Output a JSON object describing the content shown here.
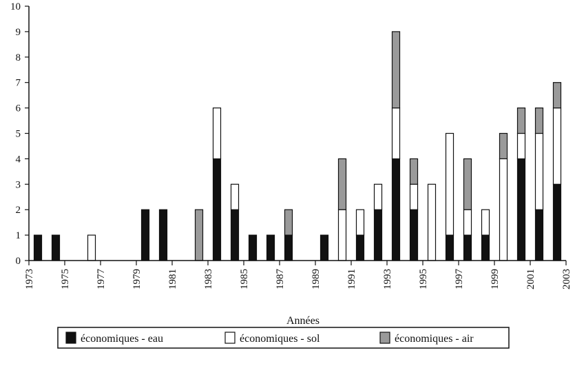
{
  "chart_data": {
    "type": "bar",
    "stacked": true,
    "title": "",
    "xlabel": "Années",
    "ylabel": "",
    "ylim": [
      0,
      10
    ],
    "yticks": [
      0,
      1,
      2,
      3,
      4,
      5,
      6,
      7,
      8,
      9,
      10
    ],
    "x_tick_labels": [
      "1973",
      "1975",
      "1977",
      "1979",
      "1981",
      "1983",
      "1985",
      "1987",
      "1989",
      "1991",
      "1993",
      "1995",
      "1997",
      "1999",
      "2001",
      "2003"
    ],
    "categories": [
      1973,
      1974,
      1975,
      1976,
      1977,
      1978,
      1979,
      1980,
      1981,
      1982,
      1983,
      1984,
      1985,
      1986,
      1987,
      1988,
      1989,
      1990,
      1991,
      1992,
      1993,
      1994,
      1995,
      1996,
      1997,
      1998,
      1999,
      2000,
      2001,
      2002
    ],
    "series": [
      {
        "name": "économiques - eau",
        "color": "#111111",
        "values": [
          1,
          1,
          0,
          0,
          0,
          0,
          2,
          2,
          0,
          0,
          4,
          2,
          1,
          1,
          1,
          0,
          1,
          0,
          1,
          2,
          4,
          2,
          0,
          1,
          1,
          1,
          0,
          4,
          2,
          3
        ]
      },
      {
        "name": "économiques - sol",
        "color": "#ffffff",
        "values": [
          0,
          0,
          0,
          1,
          0,
          0,
          0,
          0,
          0,
          0,
          2,
          1,
          0,
          0,
          0,
          0,
          0,
          2,
          1,
          1,
          2,
          1,
          3,
          4,
          1,
          1,
          4,
          1,
          3,
          3
        ]
      },
      {
        "name": "économiques - air",
        "color": "#9a9a9a",
        "values": [
          0,
          0,
          0,
          0,
          0,
          0,
          0,
          0,
          0,
          2,
          0,
          0,
          0,
          0,
          1,
          0,
          0,
          2,
          0,
          0,
          3,
          1,
          0,
          0,
          2,
          0,
          1,
          1,
          1,
          1
        ]
      }
    ],
    "grid": false,
    "legend_position": "bottom"
  }
}
